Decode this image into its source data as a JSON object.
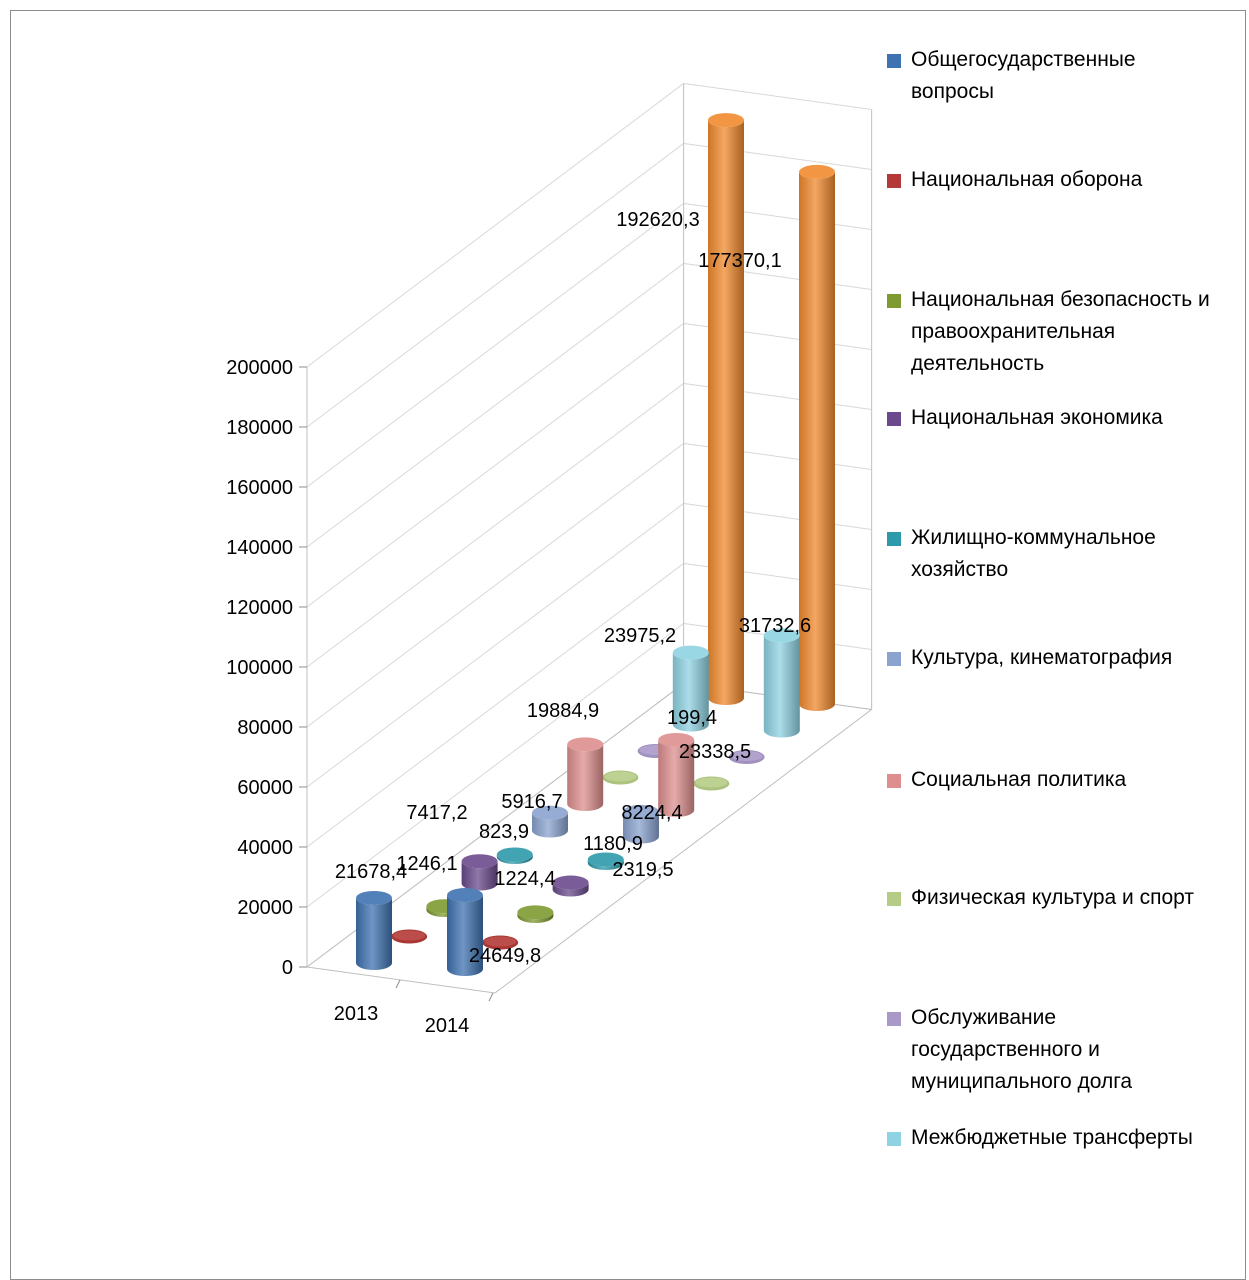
{
  "chart_data": {
    "type": "bar",
    "style": "3d-cylinder",
    "categories": [
      "2013",
      "2014"
    ],
    "ylim": [
      0,
      200000
    ],
    "yticks": [
      "0",
      "20000",
      "40000",
      "60000",
      "80000",
      "100000",
      "120000",
      "140000",
      "160000",
      "180000",
      "200000"
    ],
    "gridlines": true,
    "legend_position": "right",
    "series": [
      {
        "name": "Общегосударственные вопросы",
        "color": "#3f72b0",
        "values": [
          21678.4,
          24649.8
        ],
        "labels": [
          "21678,4",
          "24649,8"
        ]
      },
      {
        "name": "Национальная оборона",
        "color": "#b33a37",
        "values": [
          null,
          null
        ],
        "labels": [
          "",
          ""
        ]
      },
      {
        "name": "Национальная безопасность и правоохранительная деятельность",
        "color": "#7e9a30",
        "values": [
          1246.1,
          1224.4
        ],
        "labels": [
          "1246,1",
          "1224,4"
        ]
      },
      {
        "name": "Национальная экономика",
        "color": "#6a4a8c",
        "values": [
          7417.2,
          2319.5
        ],
        "labels": [
          "7417,2",
          "2319,5"
        ]
      },
      {
        "name": "Жилищно-коммунальное хозяйство",
        "color": "#2d9aab",
        "values": [
          823.9,
          1180.9
        ],
        "labels": [
          "823,9",
          "1180,9"
        ]
      },
      {
        "name": "Культура, кинематография",
        "color": "#8aa3cf",
        "values": [
          5916.7,
          8224.4
        ],
        "labels": [
          "5916,7",
          "8224,4"
        ]
      },
      {
        "name": "Социальная политика",
        "color": "#dc8f8e",
        "values": [
          19884.9,
          23338.5
        ],
        "labels": [
          "19884,9",
          "23338,5"
        ]
      },
      {
        "name": "Физическая культура и спорт",
        "color": "#b5cc86",
        "values": [
          null,
          null
        ],
        "labels": [
          "",
          ""
        ]
      },
      {
        "name": "Обслуживание государственного и муниципального долга",
        "color": "#a999c8",
        "values": [
          null,
          199.4
        ],
        "labels": [
          "",
          "199,4"
        ]
      },
      {
        "name": "Межбюджетные трансферты",
        "color": "#8fd2e2",
        "values": [
          23975.2,
          31732.6
        ],
        "labels": [
          "23975,2",
          "31732,6"
        ]
      },
      {
        "name": "",
        "color": "#f08a2e",
        "values": [
          192620.3,
          177370.1
        ],
        "labels": [
          "192620,3",
          "177370,1"
        ]
      }
    ]
  }
}
